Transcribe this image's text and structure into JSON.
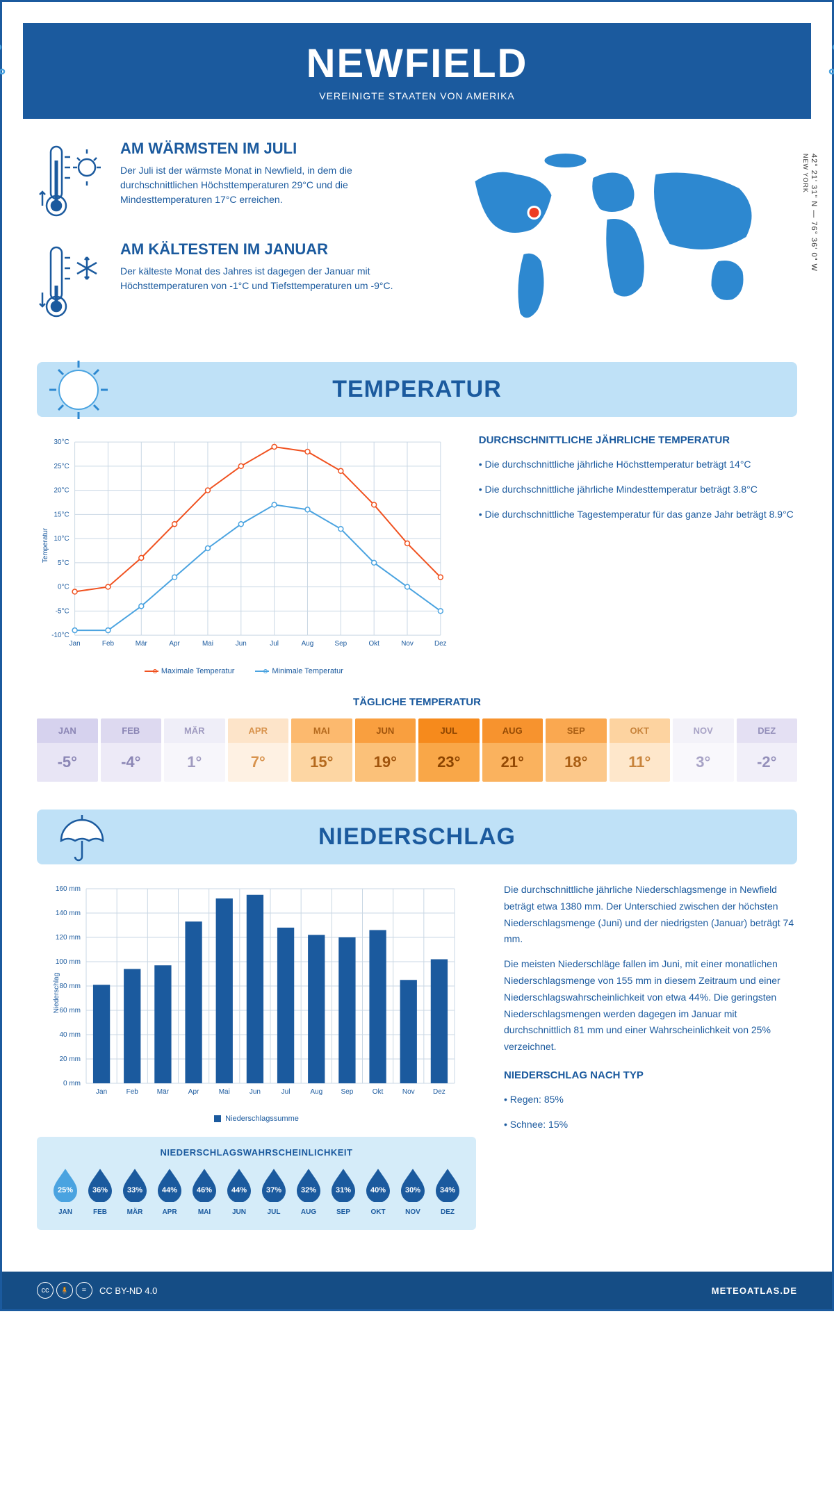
{
  "header": {
    "title": "NEWFIELD",
    "subtitle": "VEREINIGTE STAATEN VON AMERIKA"
  },
  "coords": {
    "lat": "42° 21' 31\" N",
    "lon": "76° 36' 0\" W",
    "region": "NEW YORK"
  },
  "warmest": {
    "title": "AM WÄRMSTEN IM JULI",
    "text": "Der Juli ist der wärmste Monat in Newfield, in dem die durchschnittlichen Höchsttemperaturen 29°C und die Mindesttemperaturen 17°C erreichen."
  },
  "coldest": {
    "title": "AM KÄLTESTEN IM JANUAR",
    "text": "Der kälteste Monat des Jahres ist dagegen der Januar mit Höchsttemperaturen von -1°C und Tiefsttemperaturen um -9°C."
  },
  "temperature": {
    "section_title": "TEMPERATUR",
    "desc_title": "DURCHSCHNITTLICHE JÄHRLICHE TEMPERATUR",
    "bullet1": "• Die durchschnittliche jährliche Höchsttemperatur beträgt 14°C",
    "bullet2": "• Die durchschnittliche jährliche Mindesttemperatur beträgt 3.8°C",
    "bullet3": "• Die durchschnittliche Tagestemperatur für das ganze Jahr beträgt 8.9°C",
    "daily_title": "TÄGLICHE TEMPERATUR",
    "chart": {
      "type": "line",
      "months": [
        "Jan",
        "Feb",
        "Mär",
        "Apr",
        "Mai",
        "Jun",
        "Jul",
        "Aug",
        "Sep",
        "Okt",
        "Nov",
        "Dez"
      ],
      "max_series": [
        -1,
        0,
        6,
        13,
        20,
        25,
        29,
        28,
        24,
        17,
        9,
        2
      ],
      "min_series": [
        -9,
        -9,
        -4,
        2,
        8,
        13,
        17,
        16,
        12,
        5,
        0,
        -5
      ],
      "max_color": "#f0511f",
      "min_color": "#4aa3e0",
      "grid_color": "#c9d7e4",
      "ylim": [
        -10,
        30
      ],
      "ytick_step": 5,
      "ylabel": "Temperatur",
      "legend_max": "Maximale Temperatur",
      "legend_min": "Minimale Temperatur",
      "marker_size": 3.5,
      "line_width": 2
    },
    "daily_table": [
      {
        "m": "JAN",
        "v": "-5°",
        "hbg": "#d6d2ee",
        "vbg": "#e8e5f5",
        "tc": "#8b86b5"
      },
      {
        "m": "FEB",
        "v": "-4°",
        "hbg": "#ddd9f0",
        "vbg": "#edeaf7",
        "tc": "#8b86b5"
      },
      {
        "m": "MÄR",
        "v": "1°",
        "hbg": "#efeef8",
        "vbg": "#f7f6fb",
        "tc": "#a09bc0"
      },
      {
        "m": "APR",
        "v": "7°",
        "hbg": "#fde4c9",
        "vbg": "#fef1e3",
        "tc": "#d8934d"
      },
      {
        "m": "MAI",
        "v": "15°",
        "hbg": "#fcb96e",
        "vbg": "#fdd6a3",
        "tc": "#b56a1e"
      },
      {
        "m": "JUN",
        "v": "19°",
        "hbg": "#f99f3f",
        "vbg": "#fbc179",
        "tc": "#a0540c"
      },
      {
        "m": "JUL",
        "v": "23°",
        "hbg": "#f68a1c",
        "vbg": "#f9a748",
        "tc": "#8c4400"
      },
      {
        "m": "AUG",
        "v": "21°",
        "hbg": "#f7932e",
        "vbg": "#fab25e",
        "tc": "#944a04"
      },
      {
        "m": "SEP",
        "v": "18°",
        "hbg": "#faa850",
        "vbg": "#fcc88a",
        "tc": "#a95e13"
      },
      {
        "m": "OKT",
        "v": "11°",
        "hbg": "#fdd3a0",
        "vbg": "#fee7cb",
        "tc": "#c8843c"
      },
      {
        "m": "NOV",
        "v": "3°",
        "hbg": "#f3f2f9",
        "vbg": "#f9f8fc",
        "tc": "#a8a3c6"
      },
      {
        "m": "DEZ",
        "v": "-2°",
        "hbg": "#e4e0f3",
        "vbg": "#f1eff9",
        "tc": "#948fba"
      }
    ]
  },
  "precip": {
    "section_title": "NIEDERSCHLAG",
    "para1": "Die durchschnittliche jährliche Niederschlagsmenge in Newfield beträgt etwa 1380 mm. Der Unterschied zwischen der höchsten Niederschlagsmenge (Juni) und der niedrigsten (Januar) beträgt 74 mm.",
    "para2": "Die meisten Niederschläge fallen im Juni, mit einer monatlichen Niederschlagsmenge von 155 mm in diesem Zeitraum und einer Niederschlagswahrscheinlichkeit von etwa 44%. Die geringsten Niederschlagsmengen werden dagegen im Januar mit durchschnittlich 81 mm und einer Wahrscheinlichkeit von 25% verzeichnet.",
    "type_title": "NIEDERSCHLAG NACH TYP",
    "type1": "• Regen: 85%",
    "type2": "• Schnee: 15%",
    "chart": {
      "type": "bar",
      "months": [
        "Jan",
        "Feb",
        "Mär",
        "Apr",
        "Mai",
        "Jun",
        "Jul",
        "Aug",
        "Sep",
        "Okt",
        "Nov",
        "Dez"
      ],
      "values": [
        81,
        94,
        97,
        133,
        152,
        155,
        128,
        122,
        120,
        126,
        85,
        102
      ],
      "bar_color": "#1b5a9e",
      "grid_color": "#c9d7e4",
      "ylim": [
        0,
        160
      ],
      "ytick_step": 20,
      "ylabel": "Niederschlag",
      "legend": "Niederschlagssumme",
      "bar_width": 0.55
    },
    "prob_title": "NIEDERSCHLAGSWAHRSCHEINLICHKEIT",
    "prob": [
      {
        "m": "JAN",
        "p": "25%",
        "c": "#4aa3e0"
      },
      {
        "m": "FEB",
        "p": "36%",
        "c": "#1b5a9e"
      },
      {
        "m": "MÄR",
        "p": "33%",
        "c": "#1b5a9e"
      },
      {
        "m": "APR",
        "p": "44%",
        "c": "#1b5a9e"
      },
      {
        "m": "MAI",
        "p": "46%",
        "c": "#1b5a9e"
      },
      {
        "m": "JUN",
        "p": "44%",
        "c": "#1b5a9e"
      },
      {
        "m": "JUL",
        "p": "37%",
        "c": "#1b5a9e"
      },
      {
        "m": "AUG",
        "p": "32%",
        "c": "#1b5a9e"
      },
      {
        "m": "SEP",
        "p": "31%",
        "c": "#1b5a9e"
      },
      {
        "m": "OKT",
        "p": "40%",
        "c": "#1b5a9e"
      },
      {
        "m": "NOV",
        "p": "30%",
        "c": "#1b5a9e"
      },
      {
        "m": "DEZ",
        "p": "34%",
        "c": "#1b5a9e"
      }
    ]
  },
  "footer": {
    "license": "CC BY-ND 4.0",
    "site": "METEOATLAS.DE"
  },
  "colors": {
    "primary": "#1b5a9e",
    "light": "#bfe1f7",
    "accent": "#4aa3e0"
  }
}
